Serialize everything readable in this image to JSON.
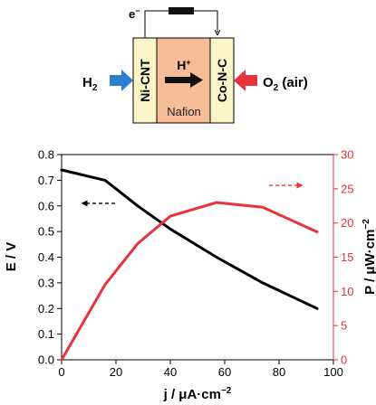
{
  "colors": {
    "left_axis": "#000000",
    "right_axis": "#e8323c",
    "electrode": "#fbf5c8",
    "membrane": "#f6bd98",
    "h2_arrow": "#2d7fd2",
    "o2_arrow": "#e8323c"
  },
  "schematic": {
    "electron": "e",
    "electron_sup": "−",
    "anode": "Ni-CNT",
    "cathode": "Co-N-C",
    "membrane": "Nafion",
    "proton": "H",
    "proton_sup": "+",
    "h2": "H",
    "h2_sub": "2",
    "o2": "O",
    "o2_sub": "2",
    "o2_suffix": " (air)"
  },
  "chart_data": {
    "type": "line",
    "xlabel": "j / μA·cm",
    "xlabel_sup": "−2",
    "ylabel_left": "E / V",
    "ylabel_right": "P / μW·cm",
    "ylabel_right_sup": "−2",
    "xlim": [
      0,
      100
    ],
    "ylim_left": [
      0,
      0.8
    ],
    "ylim_right": [
      0,
      30
    ],
    "x_ticks": [
      "0",
      "20",
      "40",
      "60",
      "80",
      "100"
    ],
    "y_left_ticks": [
      "0.0",
      "0.1",
      "0.2",
      "0.3",
      "0.4",
      "0.5",
      "0.6",
      "0.7",
      "0.8"
    ],
    "y_right_ticks": [
      "0",
      "5",
      "10",
      "15",
      "20",
      "25",
      "30"
    ],
    "series": [
      {
        "axis": "left",
        "color": "#000000",
        "x": [
          0,
          16,
          28,
          40,
          57,
          74,
          94
        ],
        "y": [
          0.74,
          0.7,
          0.6,
          0.51,
          0.4,
          0.3,
          0.2
        ]
      },
      {
        "axis": "right",
        "color": "#e8323c",
        "x": [
          0,
          16,
          28,
          40,
          57,
          74,
          94
        ],
        "y": [
          0,
          11,
          17,
          21,
          23,
          22.3,
          18.7
        ]
      }
    ],
    "annotations": [
      {
        "type": "arrow",
        "direction": "left",
        "style": "dashed",
        "color": "#000000",
        "x": 14,
        "y_left": 0.61
      },
      {
        "type": "arrow",
        "direction": "right",
        "style": "dashed",
        "color": "#e8323c",
        "x": 82,
        "y_right": 25.5
      }
    ]
  }
}
